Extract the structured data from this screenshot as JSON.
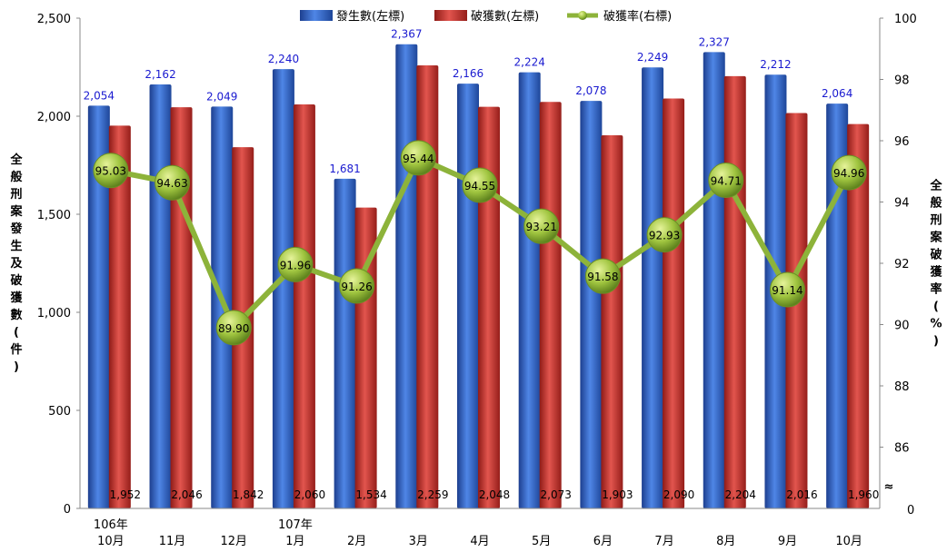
{
  "chart_data": {
    "type": "bar",
    "title": "",
    "categories": [
      [
        "106年",
        "10月"
      ],
      [
        "11月"
      ],
      [
        "12月"
      ],
      [
        "107年",
        "1月"
      ],
      [
        "2月"
      ],
      [
        "3月"
      ],
      [
        "4月"
      ],
      [
        "5月"
      ],
      [
        "6月"
      ],
      [
        "7月"
      ],
      [
        "8月"
      ],
      [
        "9月"
      ],
      [
        "10月"
      ]
    ],
    "series": [
      {
        "name": "發生數(左標)",
        "axis": "left",
        "color": "#2f62c4",
        "values": [
          2054,
          2162,
          2049,
          2240,
          1681,
          2367,
          2166,
          2224,
          2078,
          2249,
          2327,
          2212,
          2064
        ]
      },
      {
        "name": "破獲數(左標)",
        "axis": "left",
        "color": "#c9302c",
        "values": [
          1952,
          2046,
          1842,
          2060,
          1534,
          2259,
          2048,
          2073,
          1903,
          2090,
          2204,
          2016,
          1960
        ]
      },
      {
        "name": "破獲率(右標)",
        "type": "line",
        "axis": "right",
        "color": "#8db33a",
        "values": [
          95.03,
          94.63,
          89.9,
          91.96,
          91.26,
          95.44,
          94.55,
          93.21,
          91.58,
          92.93,
          94.71,
          91.14,
          94.96
        ]
      }
    ],
    "value_labels": {
      "occurrences": [
        "2,054",
        "2,162",
        "2,049",
        "2,240",
        "1,681",
        "2,367",
        "2,166",
        "2,224",
        "2,078",
        "2,249",
        "2,327",
        "2,212",
        "2,064"
      ],
      "solved": [
        "1,952",
        "2,046",
        "1,842",
        "2,060",
        "1,534",
        "2,259",
        "2,048",
        "2,073",
        "1,903",
        "2,090",
        "2,204",
        "2,016",
        "1,960"
      ],
      "rate": [
        "95.03",
        "94.63",
        "89.90",
        "91.96",
        "91.26",
        "95.44",
        "94.55",
        "93.21",
        "91.58",
        "92.93",
        "94.71",
        "91.14",
        "94.96"
      ]
    },
    "left_axis": {
      "label": "全般刑案發生及破獲數(件)",
      "ylim": [
        0,
        2500
      ],
      "ticks": [
        0,
        500,
        1000,
        1500,
        2000,
        2500
      ],
      "tick_labels": [
        "0",
        "500",
        "1,000",
        "1,500",
        "2,000",
        "2,500"
      ]
    },
    "right_axis": {
      "label": "全般刑案破獲率(%)",
      "ylim": [
        84,
        100
      ],
      "ticks": [
        86,
        88,
        90,
        92,
        94,
        96,
        98,
        100
      ],
      "tick_labels": [
        "86",
        "88",
        "90",
        "92",
        "94",
        "96",
        "98",
        "100"
      ],
      "zero_label": "0",
      "break_symbol": "≈"
    },
    "grid": false,
    "legend": "top-center"
  }
}
